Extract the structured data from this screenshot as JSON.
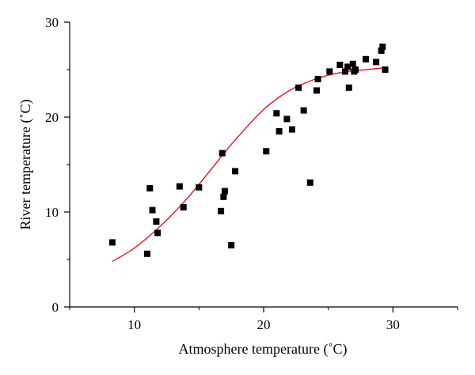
{
  "chart_data": {
    "type": "scatter",
    "xlabel": "Atmosphere temperature (˚C)",
    "ylabel": "River temperature (˚C)",
    "xlim": [
      5,
      35
    ],
    "ylim": [
      0,
      30
    ],
    "x_ticks": [
      "10",
      "20",
      "30"
    ],
    "y_ticks": [
      "0",
      "10",
      "20",
      "30"
    ],
    "x_tick_values": [
      10,
      20,
      30
    ],
    "y_tick_values": [
      0,
      10,
      20,
      30
    ],
    "grid": false,
    "colors": {
      "points": "#000000",
      "fit_line": "#e8141c",
      "axes": "#000000"
    },
    "series": [
      {
        "kind": "scatter",
        "marker": "square",
        "x": [
          8.3,
          11.0,
          11.2,
          11.4,
          11.7,
          11.8,
          13.5,
          13.8,
          15.0,
          16.7,
          16.8,
          16.9,
          17.0,
          17.5,
          17.8,
          20.2,
          21.0,
          21.2,
          21.8,
          22.2,
          22.7,
          23.1,
          23.6,
          24.1,
          24.2,
          25.1,
          25.9,
          26.3,
          26.5,
          26.6,
          26.9,
          27.0,
          27.1,
          27.9,
          28.7,
          29.1,
          29.2,
          29.4
        ],
        "y": [
          6.8,
          5.6,
          12.5,
          10.2,
          9.0,
          7.8,
          12.7,
          10.5,
          12.6,
          10.1,
          16.2,
          11.6,
          12.2,
          6.5,
          14.3,
          16.4,
          20.4,
          18.5,
          19.8,
          18.7,
          23.1,
          20.7,
          13.1,
          22.8,
          24.0,
          24.8,
          25.5,
          24.8,
          25.3,
          23.1,
          25.6,
          24.8,
          25.0,
          26.1,
          25.8,
          27.0,
          27.4,
          25.0
        ]
      },
      {
        "kind": "line",
        "x": [
          8.3,
          10.0,
          12.0,
          14.0,
          16.0,
          17.0,
          18.0,
          20.0,
          22.0,
          24.0,
          26.0,
          28.0,
          29.4
        ],
        "y": [
          4.8,
          6.2,
          8.5,
          11.3,
          14.6,
          16.3,
          17.9,
          20.8,
          22.8,
          24.0,
          24.7,
          25.0,
          25.2
        ]
      }
    ]
  }
}
